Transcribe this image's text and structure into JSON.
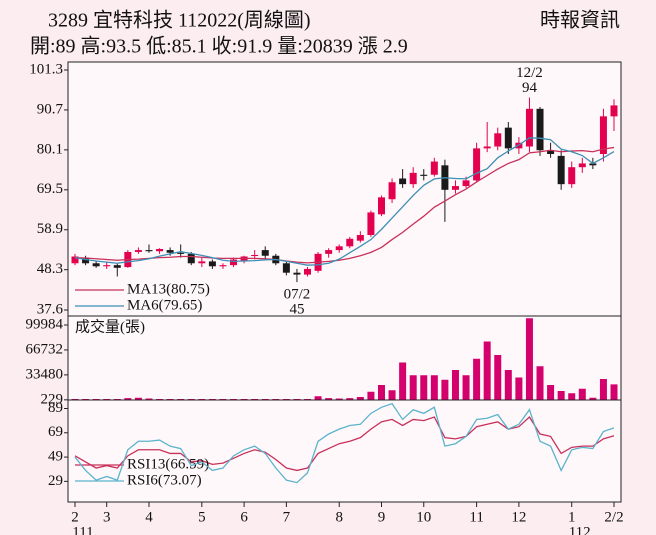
{
  "header": {
    "title": "3289  宜特科技 112022(周線圖)",
    "source": "時報資訊",
    "info": "開:89 高:93.5 低:85.1 收:91.9 量:20839 漲 2.9"
  },
  "chart_data": [
    {
      "type": "candlestick",
      "open": [
        50,
        51.5,
        50,
        49.2,
        49.5,
        49,
        53,
        53.5,
        53.2,
        53.5,
        52.8,
        52.5,
        50,
        50.5,
        49.2,
        49.5,
        50.5,
        52,
        53.5,
        52,
        50,
        47.5,
        47,
        48,
        52.5,
        53.5,
        54.5,
        56,
        57.5,
        63,
        67,
        72.5,
        71,
        73.5,
        73.5,
        76,
        69.5,
        70.5,
        72,
        80.5,
        81,
        86,
        80.5,
        81,
        91,
        80,
        78.5,
        71,
        75.5,
        76.5,
        79,
        89
      ],
      "high": [
        52.5,
        52,
        50.5,
        50.5,
        50,
        53.5,
        54.2,
        55,
        54,
        54.2,
        55,
        53,
        51.5,
        51,
        50,
        51.5,
        52,
        53.5,
        54.5,
        52.5,
        50.5,
        48.5,
        49,
        53,
        54,
        55,
        57,
        58.5,
        64,
        68,
        72.5,
        75,
        75.5,
        75,
        78,
        77.5,
        72,
        73,
        82,
        87.5,
        86,
        87.5,
        83.5,
        94,
        91.5,
        82,
        80,
        77,
        78,
        78,
        91,
        93.5
      ],
      "low": [
        49.5,
        49.5,
        48.8,
        48.5,
        46.5,
        48.8,
        52.5,
        52.8,
        52.5,
        52,
        51.5,
        49.5,
        49,
        48.5,
        48.5,
        49,
        50,
        51,
        51,
        49.5,
        46.8,
        45,
        46.5,
        47.5,
        51.5,
        52.8,
        54,
        55.5,
        57,
        62.5,
        66,
        70,
        70,
        72,
        73,
        61,
        68.5,
        70,
        71.5,
        79.5,
        80,
        79,
        79,
        79.5,
        78.5,
        78,
        69.5,
        70,
        74,
        75,
        77,
        85.1
      ],
      "close": [
        51.8,
        50,
        49.2,
        49.5,
        48.8,
        53,
        53.5,
        53.2,
        53.8,
        52.8,
        52.5,
        50,
        50.5,
        49.2,
        49.5,
        51,
        51.8,
        52.2,
        52,
        50,
        47.5,
        47,
        48.5,
        52.5,
        53.5,
        54.5,
        56.5,
        57.5,
        63.5,
        67.5,
        71.5,
        71,
        74,
        73.2,
        77,
        69.5,
        70.5,
        72,
        80.5,
        81,
        84.5,
        80.5,
        82,
        91,
        80,
        79,
        71,
        75.5,
        76.5,
        76,
        89,
        91.9
      ],
      "up_color": "#e3004f",
      "down_color": "#1a1a1a",
      "series": [
        {
          "name": "MA13(80.75)",
          "color": "#c8305a",
          "values": [
            51.5,
            51.4,
            51.2,
            51,
            50.8,
            51,
            51.1,
            51.3,
            51.5,
            51.6,
            51.8,
            51.8,
            51.6,
            51.4,
            51.3,
            51.3,
            51.3,
            51.3,
            51.2,
            51,
            50.6,
            50.3,
            50.1,
            50.3,
            50.5,
            50.8,
            51.3,
            52,
            52.9,
            54.2,
            56.3,
            58.2,
            60.4,
            62.5,
            64.9,
            66.5,
            68.2,
            69.7,
            71.6,
            73.3,
            75,
            76.5,
            77.5,
            79.3,
            79.6,
            80,
            79.6,
            79.8,
            79.9,
            79.6,
            80.3,
            80.75
          ]
        },
        {
          "name": "MA6(79.65)",
          "color": "#3d8fb5",
          "values": [
            51.5,
            51,
            50.6,
            50.3,
            50,
            50.4,
            50.7,
            51.2,
            51.9,
            52.5,
            53.1,
            52.6,
            52.1,
            51.5,
            50.8,
            50.5,
            50.6,
            50.7,
            50.9,
            51,
            50.5,
            50,
            49.5,
            49.6,
            50,
            51.1,
            52.8,
            54.5,
            56.3,
            59,
            62,
            65,
            68,
            70.7,
            72.4,
            72.7,
            72.5,
            72.4,
            73.9,
            75.1,
            78,
            79.8,
            81.4,
            83.3,
            83.2,
            82.8,
            80.3,
            79.6,
            78.6,
            76.5,
            78,
            79.65
          ]
        }
      ],
      "annotations": [
        {
          "date": "12/2",
          "value": 94
        },
        {
          "date": "07/2",
          "value": 45
        }
      ],
      "ylim": [
        37.6,
        101.3
      ],
      "yticks": [
        37.6,
        48.3,
        58.9,
        69.5,
        80.1,
        90.7,
        101.3
      ]
    },
    {
      "type": "bar",
      "title": "成交量(張)",
      "color": "#d4006c",
      "values": [
        800,
        600,
        500,
        700,
        900,
        2500,
        3000,
        2000,
        1200,
        900,
        800,
        700,
        600,
        500,
        700,
        800,
        900,
        1000,
        700,
        600,
        900,
        1200,
        800,
        5000,
        2500,
        2000,
        2500,
        4000,
        11000,
        20000,
        13000,
        50000,
        33000,
        33000,
        33000,
        27000,
        40000,
        33000,
        55000,
        78000,
        60000,
        40000,
        30000,
        109000,
        45000,
        20000,
        12000,
        9000,
        15000,
        3000,
        28000,
        20839
      ],
      "ylim": [
        0,
        112000
      ],
      "yticks": [
        229,
        33480,
        66732,
        99984
      ]
    },
    {
      "type": "line",
      "series": [
        {
          "name": "RSI13(66.59)",
          "color": "#c8305a",
          "values": [
            50,
            45,
            40,
            42,
            40,
            50,
            55,
            55,
            55,
            52,
            52,
            45,
            46,
            43,
            44,
            48,
            52,
            55,
            53,
            47,
            40,
            38,
            40,
            52,
            56,
            60,
            62,
            65,
            72,
            78,
            80,
            75,
            80,
            79,
            82,
            65,
            64,
            66,
            74,
            76,
            78,
            72,
            74,
            82,
            68,
            66,
            52,
            57,
            58,
            58,
            64,
            66.59
          ]
        },
        {
          "name": "RSI6(73.07)",
          "color": "#5bb3cc",
          "values": [
            49,
            38,
            30,
            33,
            30,
            55,
            62,
            62,
            63,
            58,
            56,
            42,
            45,
            38,
            40,
            50,
            55,
            58,
            52,
            40,
            30,
            28,
            36,
            62,
            68,
            72,
            75,
            76,
            85,
            90,
            93,
            80,
            88,
            85,
            90,
            58,
            60,
            66,
            80,
            81,
            84,
            72,
            76,
            88,
            62,
            58,
            38,
            55,
            57,
            56,
            70,
            73.07
          ]
        }
      ],
      "categories": [
        "2",
        null,
        null,
        "3",
        null,
        null,
        null,
        "4",
        null,
        null,
        null,
        null,
        "5",
        null,
        null,
        null,
        "6",
        null,
        null,
        null,
        "7",
        null,
        null,
        null,
        null,
        "8",
        null,
        null,
        null,
        "9",
        null,
        null,
        null,
        "10",
        null,
        null,
        null,
        null,
        "11",
        null,
        null,
        null,
        "12",
        null,
        null,
        null,
        null,
        "1",
        null,
        null,
        null,
        "2/2"
      ],
      "categories_row2": [
        "111",
        null,
        null,
        null,
        null,
        null,
        null,
        null,
        null,
        null,
        null,
        null,
        null,
        null,
        null,
        null,
        null,
        null,
        null,
        null,
        null,
        null,
        null,
        null,
        null,
        null,
        null,
        null,
        null,
        null,
        null,
        null,
        null,
        null,
        null,
        null,
        null,
        null,
        null,
        null,
        null,
        null,
        null,
        null,
        null,
        null,
        null,
        "112",
        null,
        null,
        null,
        null
      ],
      "ylim": [
        12,
        96
      ],
      "yticks": [
        29,
        49,
        69,
        89
      ]
    }
  ]
}
